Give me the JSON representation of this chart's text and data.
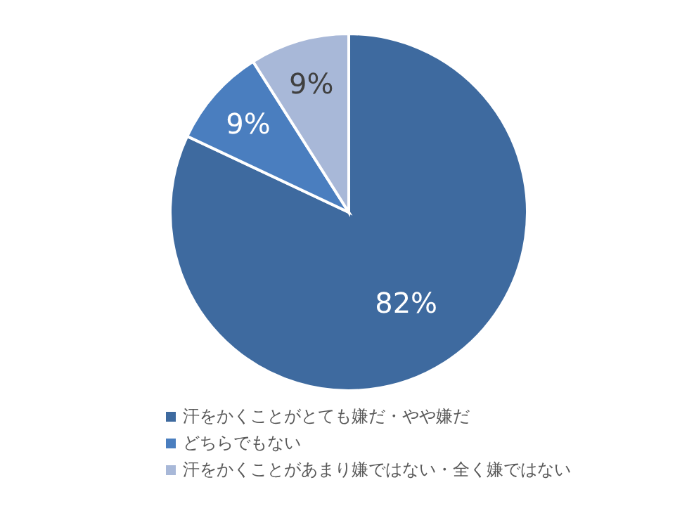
{
  "chart_data": {
    "type": "pie",
    "categories": [
      "汗をかくことがとても嫌だ・やや嫌だ",
      "どちらでもない",
      "汗をかくことがあまり嫌ではない・全く嫌ではない"
    ],
    "values": [
      82,
      9,
      9
    ],
    "colors": [
      "#3e6a9f",
      "#4a7ebf",
      "#a8b8d8"
    ],
    "value_labels": [
      "82%",
      "9%",
      "9%"
    ],
    "legend": "bottom"
  }
}
